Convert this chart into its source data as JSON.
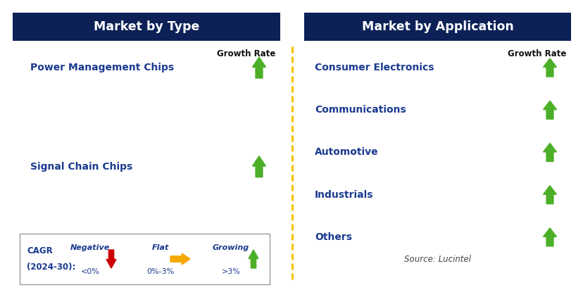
{
  "left_title": "Market by Type",
  "right_title": "Market by Application",
  "header_bg_color": "#0d2157",
  "header_text_color": "#ffffff",
  "left_items": [
    "Power Management Chips",
    "Signal Chain Chips"
  ],
  "right_items": [
    "Consumer Electronics",
    "Communications",
    "Automotive",
    "Industrials",
    "Others"
  ],
  "item_text_color": "#1a3a8f",
  "growth_rate_label": "Growth Rate",
  "arrow_up_color": "#4caf28",
  "dashed_line_color": "#f5c518",
  "legend_negative_label": "Negative",
  "legend_negative_value": "<0%",
  "legend_flat_label": "Flat",
  "legend_flat_value": "0%-3%",
  "legend_growing_label": "Growing",
  "legend_growing_value": ">3%",
  "legend_negative_arrow_color": "#cc0000",
  "legend_flat_arrow_color": "#f5a800",
  "legend_growing_arrow_color": "#4caf28",
  "source_text": "Source: Lucintel",
  "bg_color": "#ffffff",
  "fig_w": 8.29,
  "fig_h": 4.22,
  "dpi": 100
}
